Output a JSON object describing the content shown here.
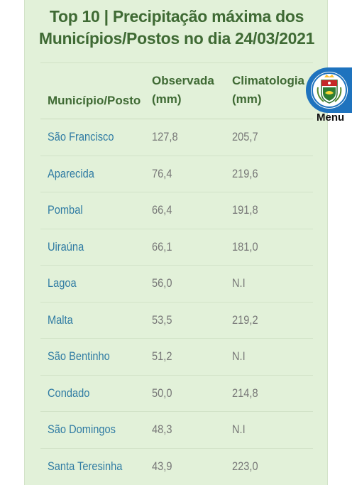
{
  "title_line1": "Top 10 | Precipitação máxima dos",
  "title_line2": "Municípios/Postos no dia 24/03/2021",
  "table": {
    "headers": {
      "municipio": "Município/Posto",
      "observada_line1": "Observada",
      "observada_line2": "(mm)",
      "climatologia_line1": "Climatologia",
      "climatologia_line2": "(mm)"
    },
    "rows": [
      {
        "name": "São Francisco",
        "observada": "127,8",
        "climatologia": "205,7"
      },
      {
        "name": "Aparecida",
        "observada": "76,4",
        "climatologia": "219,6"
      },
      {
        "name": "Pombal",
        "observada": "66,4",
        "climatologia": "191,8"
      },
      {
        "name": "Uiraúna",
        "observada": "66,1",
        "climatologia": "181,0"
      },
      {
        "name": "Lagoa",
        "observada": "56,0",
        "climatologia": "N.I"
      },
      {
        "name": "Malta",
        "observada": "53,5",
        "climatologia": "219,2"
      },
      {
        "name": "São Bentinho",
        "observada": "51,2",
        "climatologia": "N.I"
      },
      {
        "name": "Condado",
        "observada": "50,0",
        "climatologia": "214,8"
      },
      {
        "name": "São Domingos",
        "observada": "48,3",
        "climatologia": "N.I"
      },
      {
        "name": "Santa Teresinha",
        "observada": "43,9",
        "climatologia": "223,0"
      }
    ]
  },
  "menu": {
    "label": "Menu",
    "icon": "state-emblem-icon"
  },
  "colors": {
    "panel_bg": "#e2f1d9",
    "title": "#3f6a34",
    "link": "#2f7ba3",
    "value": "#777777",
    "menu_bg": "#1e73be"
  }
}
